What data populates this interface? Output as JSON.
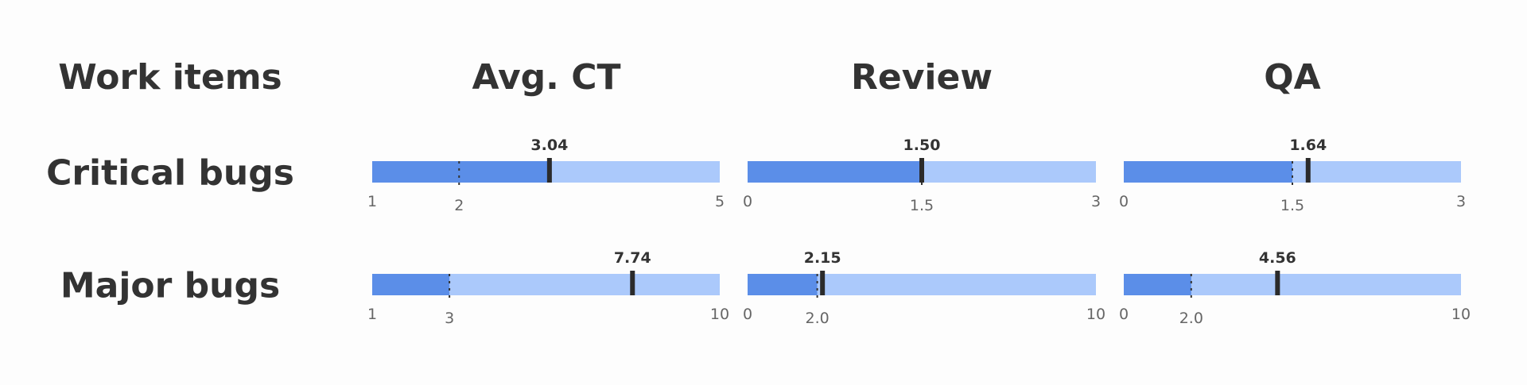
{
  "headers": {
    "work_items": "Work items",
    "columns": [
      "Avg. CT",
      "Review",
      "QA"
    ]
  },
  "colors": {
    "fill": "#5b8ee8",
    "track": "#abc9fb",
    "marker": "#2b2b2b",
    "text": "#333333",
    "tick": "#666666"
  },
  "chart_data": {
    "type": "bullet",
    "rows": [
      "Critical bugs",
      "Major bugs"
    ],
    "columns": [
      "Avg. CT",
      "Review",
      "QA"
    ],
    "bullets": [
      [
        {
          "value": 3.04,
          "value_label": "3.04",
          "target": 2,
          "fill": 3.04,
          "range": [
            1,
            5
          ],
          "ticks": [
            {
              "v": 1,
              "label": "1"
            },
            {
              "v": 2,
              "label": "2"
            },
            {
              "v": 5,
              "label": "5"
            }
          ]
        },
        {
          "value": 1.5,
          "value_label": "1.50",
          "target": 1.5,
          "fill": 1.5,
          "range": [
            0,
            3
          ],
          "ticks": [
            {
              "v": 0,
              "label": "0"
            },
            {
              "v": 1.5,
              "label": "1.5"
            },
            {
              "v": 3,
              "label": "3"
            }
          ]
        },
        {
          "value": 1.64,
          "value_label": "1.64",
          "target": 1.5,
          "fill": 1.5,
          "range": [
            0,
            3
          ],
          "ticks": [
            {
              "v": 0,
              "label": "0"
            },
            {
              "v": 1.5,
              "label": "1.5"
            },
            {
              "v": 3,
              "label": "3"
            }
          ]
        }
      ],
      [
        {
          "value": 7.74,
          "value_label": "7.74",
          "target": 3,
          "fill": 3,
          "range": [
            1,
            10
          ],
          "ticks": [
            {
              "v": 1,
              "label": "1"
            },
            {
              "v": 3,
              "label": "3"
            },
            {
              "v": 10,
              "label": "10"
            }
          ]
        },
        {
          "value": 2.15,
          "value_label": "2.15",
          "target": 2.0,
          "fill": 2.0,
          "range": [
            0,
            10
          ],
          "ticks": [
            {
              "v": 0,
              "label": "0"
            },
            {
              "v": 2,
              "label": "2.0"
            },
            {
              "v": 10,
              "label": "10"
            }
          ]
        },
        {
          "value": 4.56,
          "value_label": "4.56",
          "target": 2.0,
          "fill": 2.0,
          "range": [
            0,
            10
          ],
          "ticks": [
            {
              "v": 0,
              "label": "0"
            },
            {
              "v": 2,
              "label": "2.0"
            },
            {
              "v": 10,
              "label": "10"
            }
          ]
        }
      ]
    ]
  }
}
